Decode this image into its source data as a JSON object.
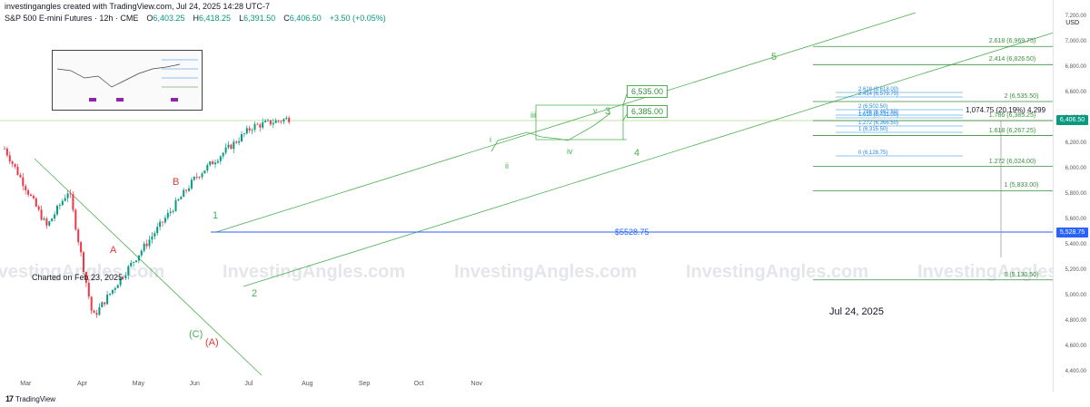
{
  "header": {
    "created_line": "investingangles created with TradingView.com, Jul 24, 2025 14:28 UTC-7",
    "symbol_line": "S&P 500 E-mini Futures · 12h · CME",
    "ohlc": [
      {
        "label": "O",
        "value": "6,403.25"
      },
      {
        "label": "H",
        "value": "6,418.25"
      },
      {
        "label": "L",
        "value": "6,391.50"
      },
      {
        "label": "C",
        "value": "6,406.50"
      },
      {
        "label": "",
        "value": "+3.50 (+0.05%)"
      }
    ]
  },
  "price_axis": {
    "unit": "USD",
    "labels": [
      "7,200.00",
      "7,000.00",
      "6,800.00",
      "6,600.00",
      "6,400.00",
      "6,200.00",
      "6,000.00",
      "5,800.00",
      "5,600.00",
      "5,400.00",
      "5,200.00",
      "5,000.00",
      "4,800.00",
      "4,600.00",
      "4,400.00"
    ],
    "current_price_tag": "6,406.50",
    "level_tag": "5,528.75"
  },
  "time_axis": {
    "labels": [
      "Mar",
      "Apr",
      "May",
      "Jun",
      "Jul",
      "Aug",
      "Sep",
      "Oct",
      "Nov"
    ]
  },
  "annotations": {
    "charted_on": "Charted on Feb 23, 2025",
    "date_note": "Jul 24, 2025",
    "watermark": "InvestingAngles.com",
    "level_line_label": "$5528.75",
    "box_labels": [
      "6,535.00",
      "6,385.00"
    ],
    "measure_text": "1,074.75 (20.19%) 4,299"
  },
  "wave_labels": {
    "red": [
      "A",
      "B",
      "(A)"
    ],
    "green": [
      "1",
      "2",
      "3",
      "4",
      "5",
      "(C)"
    ],
    "small": [
      "i",
      "ii",
      "iii",
      "iv",
      "v"
    ]
  },
  "fib_right": [
    "2.618 (6,969.75)",
    "2.414 (6,826.50)",
    "2 (6,535.50)",
    "1.786 (6,385.25)",
    "1.618 (6,267.25)",
    "1.272 (6,024.00)",
    "1 (5,833.00)",
    "0 (5,130.50)"
  ],
  "fib_small": [
    "2.618 (6,618.00)",
    "2.414 (6,579.75)",
    "2 (6,502.50)",
    "1.786 (6,462.50)",
    "1.618 (6,431.00)",
    "1.272 (6,366.50)",
    "1 (6,315.50)",
    "0 (6,128.75)"
  ],
  "footer": {
    "brand": "TradingView"
  },
  "colors": {
    "up": "#089981",
    "down": "#f23645",
    "green_line": "#4caf50",
    "blue_line": "#2962ff",
    "red_text": "#e53935",
    "fib_green": "#388e3c",
    "fib_blue": "#1e88e5"
  },
  "chart_data": {
    "type": "candlestick",
    "instrument": "S&P 500 E-mini Futures",
    "interval": "12h",
    "ylim": [
      4400,
      7200
    ],
    "key_points": [
      {
        "date": "2025-02-18",
        "price": 6165
      },
      {
        "date": "2025-03-13",
        "price": 5550
      },
      {
        "date": "2025-03-25",
        "price": 5840
      },
      {
        "date": "2025-04-07",
        "price": 4832
      },
      {
        "date": "2025-04-21",
        "price": 5120
      },
      {
        "date": "2025-06-02",
        "price": 5940
      },
      {
        "date": "2025-07-03",
        "price": 6340
      },
      {
        "date": "2025-07-24",
        "price": 6406.5
      }
    ],
    "horizontal_level": 5528.75,
    "last": {
      "open": 6403.25,
      "high": 6418.25,
      "low": 6391.5,
      "close": 6406.5,
      "change": 3.5,
      "change_pct": 0.05
    }
  }
}
